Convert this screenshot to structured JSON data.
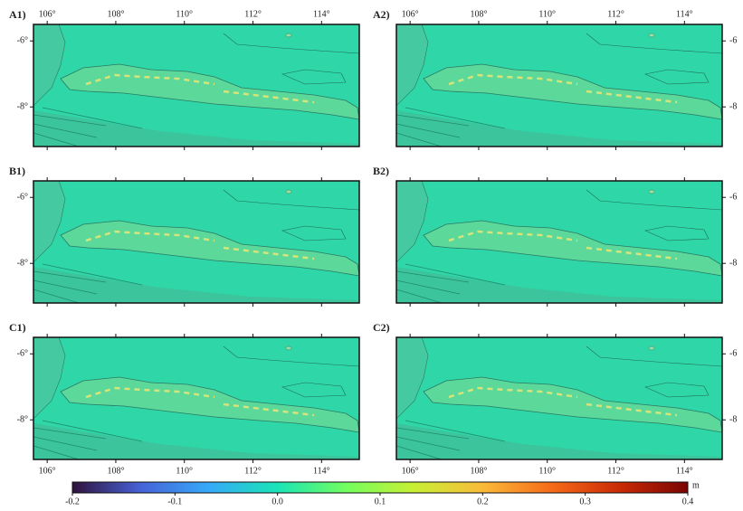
{
  "map": {
    "lonlim": [
      105.6,
      115.1
    ],
    "latlim": [
      -9.2,
      -5.5
    ],
    "lonticks": [
      {
        "value": 106,
        "label": "106°"
      },
      {
        "value": 108,
        "label": "108°"
      },
      {
        "value": 110,
        "label": "110°"
      },
      {
        "value": 112,
        "label": "112°"
      },
      {
        "value": 114,
        "label": "114°"
      }
    ],
    "latticks": [
      {
        "value": -6,
        "label": "-6°"
      },
      {
        "value": -8,
        "label": "-8°"
      }
    ],
    "latticks_right": [
      {
        "value": -6,
        "label": "-6"
      },
      {
        "value": -8,
        "label": "-8"
      }
    ],
    "panels": [
      {
        "label": "A1)"
      },
      {
        "label": "A2)"
      },
      {
        "label": "B1)"
      },
      {
        "label": "B2)"
      },
      {
        "label": "C1)"
      },
      {
        "label": "C2)"
      }
    ],
    "colorbar": {
      "lim": [
        -0.2,
        0.4
      ],
      "ticks": [
        -0.2,
        -0.1,
        {
          "value": 0,
          "label": "0.0"
        },
        0.1,
        0.2,
        0.3,
        0.4
      ],
      "unit": "m",
      "colors": [
        "#30123b",
        "#4662d7",
        "#36aaf9",
        "#1ae4b6",
        "#72fe5e",
        "#c8ef34",
        "#faba39",
        "#f66b19",
        "#ca2a04",
        "#7a0403"
      ]
    }
  }
}
